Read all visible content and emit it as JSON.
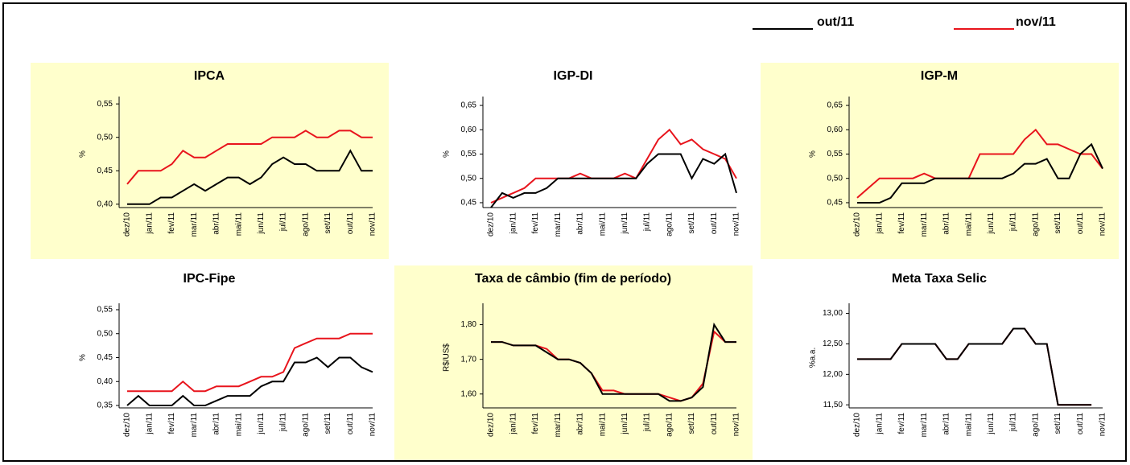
{
  "legend": [
    {
      "name": "out/11",
      "color": "#000000"
    },
    {
      "name": "nov/11",
      "color": "#e8141c"
    }
  ],
  "chart_data": [
    {
      "type": "line",
      "title": "IPCA",
      "y_label": "%",
      "panel_color": "#ffffcc",
      "categories": [
        "dez/10",
        null,
        "jan/11",
        null,
        "fev/11",
        null,
        "mar/11",
        null,
        "abr/11",
        null,
        "mai/11",
        null,
        "jun/11",
        null,
        "jul/11",
        null,
        "ago/11",
        null,
        "set/11",
        null,
        "out/11",
        null,
        "nov/11"
      ],
      "series": [
        {
          "values": [
            0.4,
            0.4,
            0.4,
            0.41,
            0.41,
            0.42,
            0.43,
            0.42,
            0.43,
            0.44,
            0.44,
            0.43,
            0.44,
            0.46,
            0.47,
            0.46,
            0.46,
            0.45,
            0.45,
            0.45,
            0.48,
            0.45,
            0.45
          ]
        },
        {
          "values": [
            0.43,
            0.45,
            0.45,
            0.45,
            0.46,
            0.48,
            0.47,
            0.47,
            0.48,
            0.49,
            0.49,
            0.49,
            0.49,
            0.5,
            0.5,
            0.5,
            0.51,
            0.5,
            0.5,
            0.51,
            0.51,
            0.5,
            0.5
          ]
        }
      ],
      "ylim": [
        0.395,
        0.555
      ],
      "yticks": [
        {
          "value": 0.4,
          "label": "0,40"
        },
        {
          "value": 0.45,
          "label": "0,45"
        },
        {
          "value": 0.5,
          "label": "0,50"
        },
        {
          "value": 0.55,
          "label": "0,55"
        }
      ]
    },
    {
      "type": "line",
      "title": "IGP-DI",
      "y_label": "%",
      "categories": [
        "dez/10",
        null,
        "jan/11",
        null,
        "fev/11",
        null,
        "mar/11",
        null,
        "abr/11",
        null,
        "mai/11",
        null,
        "jun/11",
        null,
        "jul/11",
        null,
        "ago/11",
        null,
        "set/11",
        null,
        "out/11",
        null,
        "nov/11"
      ],
      "series": [
        {
          "values": [
            0.44,
            0.47,
            0.46,
            0.47,
            0.47,
            0.48,
            0.5,
            0.5,
            0.5,
            0.5,
            0.5,
            0.5,
            0.5,
            0.5,
            0.53,
            0.55,
            0.55,
            0.55,
            0.5,
            0.54,
            0.53,
            0.55,
            0.47
          ]
        },
        {
          "values": [
            0.45,
            0.46,
            0.47,
            0.48,
            0.5,
            0.5,
            0.5,
            0.5,
            0.51,
            0.5,
            0.5,
            0.5,
            0.51,
            0.5,
            0.54,
            0.58,
            0.6,
            0.57,
            0.58,
            0.56,
            0.55,
            0.54,
            0.5
          ]
        }
      ],
      "ylim": [
        0.44,
        0.66
      ],
      "yticks": [
        {
          "value": 0.45,
          "label": "0,45"
        },
        {
          "value": 0.5,
          "label": "0,50"
        },
        {
          "value": 0.55,
          "label": "0,55"
        },
        {
          "value": 0.6,
          "label": "0,60"
        },
        {
          "value": 0.65,
          "label": "0,65"
        }
      ]
    },
    {
      "type": "line",
      "title": "IGP-M",
      "y_label": "%",
      "panel_color": "#ffffcc",
      "categories": [
        "dez/10",
        null,
        "jan/11",
        null,
        "fev/11",
        null,
        "mar/11",
        null,
        "abr/11",
        null,
        "mai/11",
        null,
        "jun/11",
        null,
        "jul/11",
        null,
        "ago/11",
        null,
        "set/11",
        null,
        "out/11",
        null,
        "nov/11"
      ],
      "series": [
        {
          "values": [
            0.45,
            0.45,
            0.45,
            0.46,
            0.49,
            0.49,
            0.49,
            0.5,
            0.5,
            0.5,
            0.5,
            0.5,
            0.5,
            0.5,
            0.51,
            0.53,
            0.53,
            0.54,
            0.5,
            0.5,
            0.55,
            0.57,
            0.52
          ]
        },
        {
          "values": [
            0.46,
            0.48,
            0.5,
            0.5,
            0.5,
            0.5,
            0.51,
            0.5,
            0.5,
            0.5,
            0.5,
            0.55,
            0.55,
            0.55,
            0.55,
            0.58,
            0.6,
            0.57,
            0.57,
            0.56,
            0.55,
            0.55,
            0.52
          ]
        }
      ],
      "ylim": [
        0.44,
        0.66
      ],
      "yticks": [
        {
          "value": 0.45,
          "label": "0,45"
        },
        {
          "value": 0.5,
          "label": "0,50"
        },
        {
          "value": 0.55,
          "label": "0,55"
        },
        {
          "value": 0.6,
          "label": "0,60"
        },
        {
          "value": 0.65,
          "label": "0,65"
        }
      ]
    },
    {
      "type": "line",
      "title": "IPC-Fipe",
      "y_label": "%",
      "categories": [
        "dez/10",
        null,
        "jan/11",
        null,
        "fev/11",
        null,
        "mar/11",
        null,
        "abr/11",
        null,
        "mai/11",
        null,
        "jun/11",
        null,
        "jul/11",
        null,
        "ago/11",
        null,
        "set/11",
        null,
        "out/11",
        null,
        "nov/11"
      ],
      "series": [
        {
          "values": [
            0.35,
            0.37,
            0.35,
            0.35,
            0.35,
            0.37,
            0.35,
            0.35,
            0.36,
            0.37,
            0.37,
            0.37,
            0.39,
            0.4,
            0.4,
            0.44,
            0.44,
            0.45,
            0.43,
            0.45,
            0.45,
            0.43,
            0.42
          ]
        },
        {
          "values": [
            0.38,
            0.38,
            0.38,
            0.38,
            0.38,
            0.4,
            0.38,
            0.38,
            0.39,
            0.39,
            0.39,
            0.4,
            0.41,
            0.41,
            0.42,
            0.47,
            0.48,
            0.49,
            0.49,
            0.49,
            0.5,
            0.5,
            0.5
          ]
        }
      ],
      "ylim": [
        0.345,
        0.555
      ],
      "yticks": [
        {
          "value": 0.35,
          "label": "0,35"
        },
        {
          "value": 0.4,
          "label": "0,40"
        },
        {
          "value": 0.45,
          "label": "0,45"
        },
        {
          "value": 0.5,
          "label": "0,50"
        },
        {
          "value": 0.55,
          "label": "0,55"
        }
      ]
    },
    {
      "type": "line",
      "title": "Taxa de câmbio (fim de período)",
      "y_label": "R$/US$",
      "panel_color": "#ffffcc",
      "categories": [
        "dez/10",
        null,
        "jan/11",
        null,
        "fev/11",
        null,
        "mar/11",
        null,
        "abr/11",
        null,
        "mai/11",
        null,
        "jun/11",
        null,
        "jul/11",
        null,
        "ago/11",
        null,
        "set/11",
        null,
        "out/11",
        null,
        "nov/11"
      ],
      "series": [
        {
          "values": [
            1.75,
            1.75,
            1.74,
            1.74,
            1.74,
            1.72,
            1.7,
            1.7,
            1.69,
            1.66,
            1.6,
            1.6,
            1.6,
            1.6,
            1.6,
            1.6,
            1.58,
            1.58,
            1.59,
            1.62,
            1.8,
            1.75,
            1.75
          ]
        },
        {
          "values": [
            1.75,
            1.75,
            1.74,
            1.74,
            1.74,
            1.73,
            1.7,
            1.7,
            1.69,
            1.66,
            1.61,
            1.61,
            1.6,
            1.6,
            1.6,
            1.6,
            1.59,
            1.58,
            1.59,
            1.63,
            1.78,
            1.75,
            1.75
          ]
        }
      ],
      "ylim": [
        1.56,
        1.85
      ],
      "yticks": [
        {
          "value": 1.6,
          "label": "1,60"
        },
        {
          "value": 1.7,
          "label": "1,70"
        },
        {
          "value": 1.8,
          "label": "1,80"
        }
      ]
    },
    {
      "type": "line",
      "title": "Meta Taxa Selic",
      "y_label": "%a.a.",
      "categories": [
        "dez/10",
        null,
        "jan/11",
        null,
        "fev/11",
        null,
        "mar/11",
        null,
        "abr/11",
        null,
        "mai/11",
        null,
        "jun/11",
        null,
        "jul/11",
        null,
        "ago/11",
        null,
        "set/11",
        null,
        "out/11",
        null,
        "nov/11"
      ],
      "series": [
        {
          "values": [
            12.25,
            12.25,
            12.25,
            12.25,
            12.5,
            12.5,
            12.5,
            12.5,
            12.25,
            12.25,
            12.5,
            12.5,
            12.5,
            12.5,
            12.75,
            12.75,
            12.5,
            12.5,
            11.5,
            11.5,
            11.5,
            11.5,
            null
          ]
        },
        {
          "values": [
            12.25,
            12.25,
            12.25,
            12.25,
            12.5,
            12.5,
            12.5,
            12.5,
            12.25,
            12.25,
            12.5,
            12.5,
            12.5,
            12.5,
            12.75,
            12.75,
            12.5,
            12.5,
            11.5,
            11.5,
            11.5,
            11.5,
            null
          ]
        }
      ],
      "ylim": [
        11.45,
        13.1
      ],
      "yticks": [
        {
          "value": 11.5,
          "label": "11,50"
        },
        {
          "value": 12,
          "label": "12,00"
        },
        {
          "value": 12.5,
          "label": "12,50"
        },
        {
          "value": 13,
          "label": "13,00"
        }
      ]
    }
  ]
}
